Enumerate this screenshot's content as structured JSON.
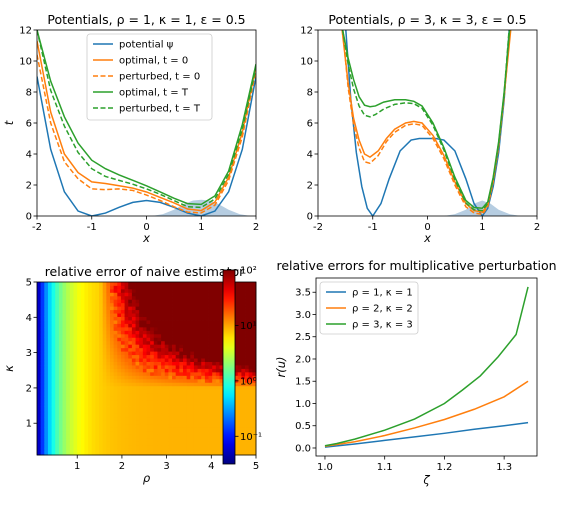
{
  "colors": {
    "blue": "#1f77b4",
    "orange": "#ff7f0e",
    "green": "#2ca02c",
    "fill": "#a9c4dc"
  },
  "chart_data": [
    {
      "type": "line",
      "title": "Potentials, ρ = 1, κ = 1, ε = 0.5",
      "xlabel": "x",
      "ylabel": "t",
      "xlim": [
        -2,
        2
      ],
      "ylim": [
        0,
        12
      ],
      "xticks": [
        "-2",
        "-1",
        "0",
        "1",
        "2"
      ],
      "yticks": [
        "0",
        "2",
        "4",
        "6",
        "8",
        "10",
        "12"
      ],
      "legend_position": "top-center",
      "series": [
        {
          "name": "potential ψ",
          "color": "#1f77b4",
          "dash": false,
          "legend": true,
          "x": [
            -2,
            -1.75,
            -1.5,
            -1.25,
            -1,
            -0.75,
            -0.5,
            -0.25,
            0,
            0.25,
            0.5,
            0.75,
            1,
            1.25,
            1.5,
            1.75,
            2
          ],
          "y": [
            9,
            4.3,
            1.56,
            0.32,
            0,
            0.19,
            0.56,
            0.88,
            1,
            0.88,
            0.56,
            0.19,
            0,
            0.32,
            1.56,
            4.3,
            9
          ]
        },
        {
          "name": "optimal, t = 0",
          "color": "#ff7f0e",
          "dash": false,
          "legend": true,
          "x": [
            -2,
            -1.75,
            -1.5,
            -1.25,
            -1,
            -0.75,
            -0.5,
            -0.25,
            0,
            0.25,
            0.5,
            0.75,
            1,
            1.25,
            1.5,
            1.75,
            2
          ],
          "y": [
            11.3,
            6.7,
            4.0,
            2.8,
            2.2,
            2.1,
            1.95,
            1.8,
            1.55,
            1.2,
            0.85,
            0.45,
            0.35,
            0.9,
            2.5,
            5.4,
            9.7
          ]
        },
        {
          "name": "perturbed, t = 0",
          "color": "#ff7f0e",
          "dash": true,
          "legend": true,
          "x": [
            -2,
            -1.75,
            -1.5,
            -1.25,
            -1,
            -0.75,
            -0.5,
            -0.25,
            0,
            0.25,
            0.5,
            0.75,
            1,
            1.25,
            1.5,
            1.75,
            2
          ],
          "y": [
            10.4,
            6.0,
            3.5,
            2.4,
            1.75,
            1.7,
            1.75,
            1.65,
            1.35,
            1.0,
            0.6,
            0.25,
            0.2,
            0.7,
            2.3,
            5.1,
            9.4
          ]
        },
        {
          "name": "optimal, t = T",
          "color": "#2ca02c",
          "dash": false,
          "legend": true,
          "x": [
            -2,
            -1.75,
            -1.5,
            -1.25,
            -1,
            -0.75,
            -0.5,
            -0.25,
            0,
            0.25,
            0.5,
            0.75,
            1,
            1.25,
            1.5,
            1.75,
            2
          ],
          "y": [
            12,
            8.7,
            6.4,
            4.7,
            3.6,
            3.05,
            2.65,
            2.3,
            1.95,
            1.55,
            1.15,
            0.8,
            0.75,
            1.3,
            2.9,
            5.9,
            9.8
          ]
        },
        {
          "name": "perturbed, t = T",
          "color": "#2ca02c",
          "dash": true,
          "legend": true,
          "x": [
            -2,
            -1.75,
            -1.5,
            -1.25,
            -1,
            -0.75,
            -0.5,
            -0.25,
            0,
            0.25,
            0.5,
            0.75,
            1,
            1.25,
            1.5,
            1.75,
            2
          ],
          "y": [
            12,
            8.1,
            5.8,
            4.1,
            3.05,
            2.55,
            2.3,
            2.05,
            1.75,
            1.4,
            1.0,
            0.6,
            0.55,
            1.1,
            2.7,
            5.6,
            9.6
          ]
        },
        {
          "name": "density",
          "type": "area",
          "color": "#a9c4dc",
          "legend": false,
          "x": [
            0.1,
            0.3,
            0.5,
            0.7,
            0.85,
            1.0,
            1.15,
            1.3,
            1.5,
            1.7,
            1.9
          ],
          "y": [
            0,
            0.12,
            0.4,
            0.8,
            1.0,
            1.05,
            1.0,
            0.8,
            0.4,
            0.12,
            0
          ]
        }
      ]
    },
    {
      "type": "line",
      "title": "Potentials, ρ = 3, κ = 3, ε = 0.5",
      "xlabel": "x",
      "ylabel": "",
      "xlim": [
        -2,
        2
      ],
      "ylim": [
        0,
        12
      ],
      "xticks": [
        "-2",
        "-1",
        "0",
        "1",
        "2"
      ],
      "yticks": [
        "0",
        "2",
        "4",
        "6",
        "8",
        "10",
        "12"
      ],
      "series": [
        {
          "name": "potential ψ",
          "color": "#1f77b4",
          "dash": false,
          "x": [
            -1.5,
            -1.4,
            -1.3,
            -1.2,
            -1.1,
            -1,
            -0.85,
            -0.7,
            -0.5,
            -0.3,
            -0.15,
            0,
            0.15,
            0.3,
            0.5,
            0.7,
            0.85,
            1,
            1.1,
            1.2,
            1.3,
            1.4,
            1.5
          ],
          "y": [
            12.4,
            7.5,
            4.1,
            1.9,
            0.5,
            0,
            0.8,
            2.4,
            4.2,
            4.9,
            5.0,
            5.0,
            5.0,
            4.9,
            4.2,
            2.4,
            0.8,
            0,
            0.5,
            1.9,
            4.1,
            7.5,
            12.4
          ]
        },
        {
          "name": "optimal, t = 0",
          "color": "#ff7f0e",
          "dash": false,
          "x": [
            -1.56,
            -1.45,
            -1.35,
            -1.25,
            -1.15,
            -1.05,
            -0.9,
            -0.75,
            -0.6,
            -0.4,
            -0.25,
            -0.1,
            0.1,
            0.3,
            0.5,
            0.7,
            0.85,
            1.0,
            1.1,
            1.2,
            1.3,
            1.4,
            1.52
          ],
          "y": [
            12,
            8.6,
            6.3,
            4.9,
            4.0,
            3.8,
            4.2,
            5.0,
            5.6,
            6.0,
            6.1,
            6.0,
            5.2,
            3.9,
            2.2,
            0.8,
            0.35,
            0.25,
            0.7,
            2.3,
            4.6,
            7.8,
            12
          ]
        },
        {
          "name": "perturbed, t = 0",
          "color": "#ff7f0e",
          "dash": true,
          "x": [
            -1.55,
            -1.45,
            -1.35,
            -1.25,
            -1.15,
            -1.05,
            -0.9,
            -0.75,
            -0.6,
            -0.4,
            -0.25,
            -0.1,
            0.1,
            0.3,
            0.5,
            0.7,
            0.85,
            1.0,
            1.1,
            1.2,
            1.3,
            1.4,
            1.51
          ],
          "y": [
            12,
            8.3,
            5.9,
            4.4,
            3.5,
            3.4,
            3.9,
            4.8,
            5.4,
            5.85,
            5.95,
            5.85,
            5.0,
            3.7,
            2.0,
            0.6,
            0.2,
            0.1,
            0.6,
            2.2,
            4.5,
            7.7,
            12
          ]
        },
        {
          "name": "optimal, t = T",
          "color": "#2ca02c",
          "dash": false,
          "x": [
            -1.55,
            -1.45,
            -1.35,
            -1.25,
            -1.15,
            -1.05,
            -0.95,
            -0.8,
            -0.6,
            -0.4,
            -0.25,
            -0.1,
            0.1,
            0.3,
            0.5,
            0.7,
            0.85,
            1.0,
            1.1,
            1.2,
            1.3,
            1.4,
            1.5
          ],
          "y": [
            12,
            10.2,
            8.8,
            7.7,
            7.15,
            7.05,
            7.1,
            7.35,
            7.5,
            7.5,
            7.4,
            7.1,
            6.0,
            4.4,
            2.5,
            1.0,
            0.55,
            0.5,
            0.9,
            2.5,
            4.8,
            8.0,
            12
          ]
        },
        {
          "name": "perturbed, t = T",
          "color": "#2ca02c",
          "dash": true,
          "x": [
            -1.55,
            -1.45,
            -1.35,
            -1.25,
            -1.15,
            -1.05,
            -0.95,
            -0.8,
            -0.6,
            -0.4,
            -0.25,
            -0.1,
            0.1,
            0.3,
            0.5,
            0.7,
            0.85,
            1.0,
            1.1,
            1.2,
            1.3,
            1.4,
            1.49
          ],
          "y": [
            12,
            9.8,
            8.2,
            7.1,
            6.5,
            6.4,
            6.55,
            6.9,
            7.2,
            7.3,
            7.25,
            6.95,
            5.85,
            4.25,
            2.35,
            0.85,
            0.4,
            0.35,
            0.8,
            2.4,
            4.7,
            7.9,
            12
          ]
        },
        {
          "name": "density",
          "type": "area",
          "color": "#a9c4dc",
          "x": [
            0.3,
            0.5,
            0.7,
            0.85,
            1.0,
            1.15,
            1.3,
            1.5,
            1.7
          ],
          "y": [
            0,
            0.12,
            0.4,
            0.8,
            1.0,
            0.8,
            0.4,
            0.12,
            0
          ]
        }
      ]
    },
    {
      "type": "heatmap",
      "title": "relative error of naive estimator",
      "xlabel": "ρ",
      "ylabel": "κ",
      "xlim": [
        0.1,
        5
      ],
      "ylim": [
        0.1,
        5
      ],
      "xticks": [
        "1",
        "2",
        "3",
        "4",
        "5"
      ],
      "yticks": [
        "1",
        "2",
        "3",
        "4",
        "5"
      ],
      "colorscale": "jet",
      "log_scale": true,
      "cmin_exp": -1.5,
      "cmax_exp": 2,
      "colorbar_ticks": [
        "10⁻¹",
        "10⁰",
        "10¹",
        "10²"
      ],
      "colorbar_tick_exps": [
        -1,
        0,
        1,
        2
      ]
    },
    {
      "type": "line",
      "title": "relative errors for multiplicative perturbation",
      "xlabel": "ζ",
      "ylabel": "r(u)",
      "xlim": [
        0.985,
        1.355
      ],
      "ylim": [
        -0.18,
        3.82
      ],
      "xticks": [
        "1.0",
        "1.1",
        "1.2",
        "1.3"
      ],
      "yticks": [
        "0.0",
        "0.5",
        "1.0",
        "1.5",
        "2.0",
        "2.5",
        "3.0",
        "3.5"
      ],
      "legend_position": "top-left",
      "series": [
        {
          "name": "ρ = 1, κ = 1",
          "color": "#1f77b4",
          "x": [
            1.0,
            1.05,
            1.1,
            1.15,
            1.2,
            1.25,
            1.3,
            1.34
          ],
          "y": [
            0.02,
            0.09,
            0.17,
            0.25,
            0.33,
            0.42,
            0.5,
            0.57
          ]
        },
        {
          "name": "ρ = 2, κ = 2",
          "color": "#ff7f0e",
          "x": [
            1.0,
            1.05,
            1.1,
            1.15,
            1.2,
            1.25,
            1.3,
            1.34
          ],
          "y": [
            0.04,
            0.14,
            0.28,
            0.45,
            0.64,
            0.87,
            1.15,
            1.5
          ]
        },
        {
          "name": "ρ = 3, κ = 3",
          "color": "#2ca02c",
          "x": [
            1.0,
            1.02,
            1.05,
            1.1,
            1.15,
            1.2,
            1.23,
            1.26,
            1.29,
            1.32,
            1.34
          ],
          "y": [
            0.05,
            0.1,
            0.2,
            0.4,
            0.65,
            1.0,
            1.3,
            1.62,
            2.05,
            2.55,
            3.62
          ]
        }
      ]
    }
  ]
}
